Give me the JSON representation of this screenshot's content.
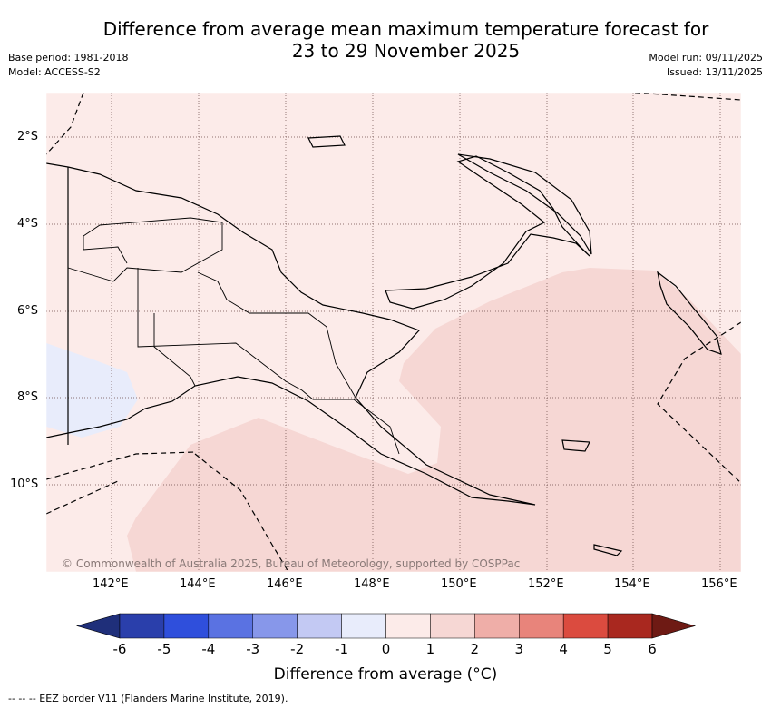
{
  "header": {
    "title_line1": "Difference from average mean maximum temperature forecast for",
    "title_line2": "23 to 29 November 2025",
    "base_period": "Base period: 1981-2018",
    "model": "Model: ACCESS-S2",
    "model_run": "Model run: 09/11/2025",
    "issued": "Issued: 13/11/2025"
  },
  "map": {
    "lat_ticks": [
      "2°S",
      "4°S",
      "6°S",
      "8°S",
      "10°S"
    ],
    "lon_ticks": [
      "142°E",
      "144°E",
      "146°E",
      "148°E",
      "150°E",
      "152°E",
      "154°E",
      "156°E"
    ],
    "copyright": "© Commonwealth of Australia 2025, Bureau of Meteorology, supported by COSPPac",
    "colors": {
      "anomaly_0_1": "#fcebe9",
      "anomaly_1_2": "#f6d7d4",
      "anomaly_-1_0": "#e8ecfb"
    }
  },
  "colorbar": {
    "labels": [
      "-6",
      "-5",
      "-4",
      "-3",
      "-2",
      "-1",
      "0",
      "1",
      "2",
      "3",
      "4",
      "5",
      "6"
    ],
    "colors": [
      "#1f2f7a",
      "#2a3fab",
      "#2f4fdc",
      "#5a72e2",
      "#8797ea",
      "#c3c9f3",
      "#e8ecfb",
      "#fcebe9",
      "#f6d7d4",
      "#efaea8",
      "#e8847b",
      "#db4b3f",
      "#a9281f",
      "#6e1a14"
    ],
    "title": "Difference from average (°C)"
  },
  "footer": {
    "eez_note": "--  --  -- EEZ border V11 (Flanders Marine Institute, 2019)."
  }
}
